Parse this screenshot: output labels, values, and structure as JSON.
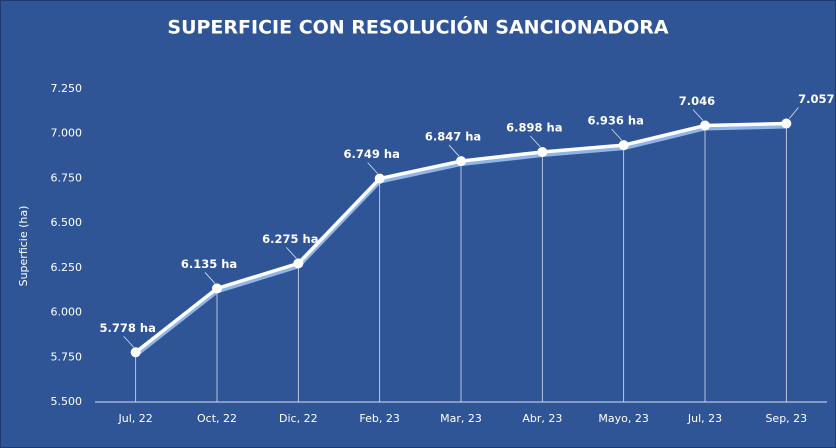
{
  "chart_data": {
    "type": "line",
    "title": "SUPERFICIE  CON RESOLUCIÓN SANCIONADORA",
    "y_label": "Superficie (ha)",
    "categories": [
      "Jul, 22",
      "Oct, 22",
      "Dic, 22",
      "Feb, 23",
      "Mar, 23",
      "Abr, 23",
      "Mayo, 23",
      "Jul, 23",
      "Sep, 23"
    ],
    "values": [
      5778,
      6135,
      6275,
      6749,
      6847,
      6898,
      6936,
      7046,
      7057
    ],
    "value_labels": [
      "5.778 ha",
      "6.135 ha",
      "6.275 ha",
      "6.749 ha",
      "6.847 ha",
      "6.898 ha",
      "6.936 ha",
      "7.046",
      "7.057"
    ],
    "color": "#ffffff",
    "ylim": [
      5500,
      7250
    ],
    "yticks": [
      {
        "value": 5500,
        "label": "5.500"
      },
      {
        "value": 5750,
        "label": "5.750"
      },
      {
        "value": 6000,
        "label": "6.000"
      },
      {
        "value": 6250,
        "label": "6.250"
      },
      {
        "value": 6500,
        "label": "6.500"
      },
      {
        "value": 6750,
        "label": "6.750"
      },
      {
        "value": 7000,
        "label": "7.000"
      },
      {
        "value": 7250,
        "label": "7.250"
      }
    ],
    "grid": false
  }
}
